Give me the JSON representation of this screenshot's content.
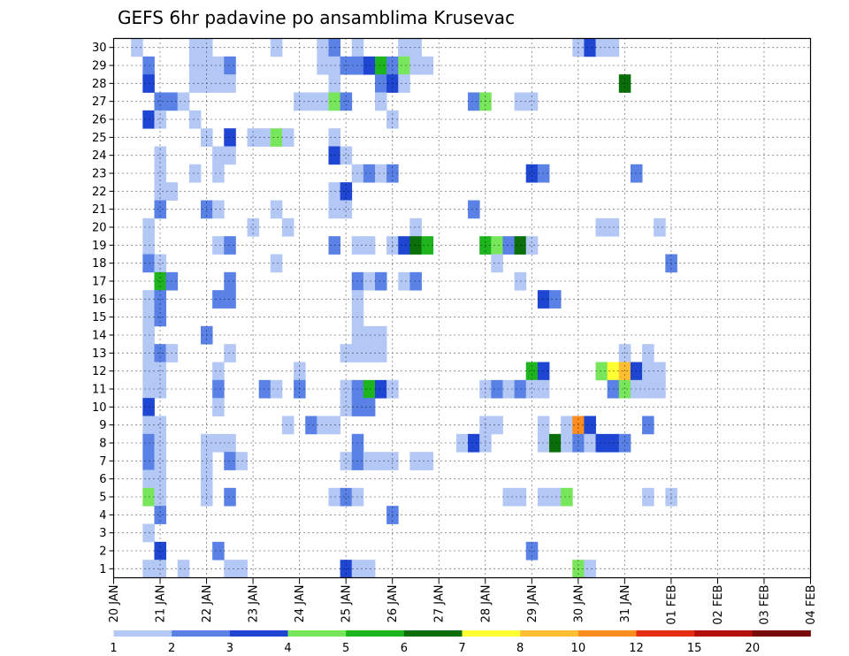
{
  "chart_data": {
    "type": "heatmap",
    "title": "GEFS 6hr padavine po ansamblima Krusevac",
    "xlabel": "",
    "ylabel": "",
    "x_tick_labels": [
      "20 JAN",
      "21 JAN",
      "22 JAN",
      "23 JAN",
      "24 JAN",
      "25 JAN",
      "26 JAN",
      "27 JAN",
      "28 JAN",
      "29 JAN",
      "30 JAN",
      "31 JAN",
      "01 FEB",
      "02 FEB",
      "03 FEB",
      "04 FEB"
    ],
    "y_tick_labels": [
      "1",
      "2",
      "3",
      "4",
      "5",
      "6",
      "7",
      "8",
      "9",
      "10",
      "11",
      "12",
      "13",
      "14",
      "15",
      "16",
      "17",
      "18",
      "19",
      "20",
      "21",
      "22",
      "23",
      "24",
      "25",
      "26",
      "27",
      "28",
      "29",
      "30"
    ],
    "xlim": [
      0,
      60
    ],
    "ylim": [
      0.5,
      30.5
    ],
    "time_step_hours": 6,
    "grid": "dotted",
    "legend": {
      "placement": "bottom",
      "levels": [
        "1",
        "2",
        "3",
        "4",
        "5",
        "6",
        "7",
        "8",
        "10",
        "12",
        "15",
        "20"
      ],
      "colors": [
        "#b4c8f5",
        "#5a82e6",
        "#1e46d2",
        "#78e65a",
        "#1eb41e",
        "#0a6e0a",
        "#ffff32",
        "#ffbe32",
        "#ff8c1e",
        "#e62d14",
        "#b40f0a",
        "#780a0a"
      ]
    },
    "cells": [
      [
        30,
        2,
        1
      ],
      [
        30,
        7,
        1
      ],
      [
        30,
        8,
        1
      ],
      [
        30,
        14,
        1
      ],
      [
        30,
        18,
        1
      ],
      [
        30,
        19,
        2
      ],
      [
        30,
        21,
        1
      ],
      [
        30,
        25,
        1
      ],
      [
        30,
        25,
        1
      ],
      [
        30,
        25,
        1
      ],
      [
        30,
        26,
        1
      ],
      [
        30,
        40,
        1
      ],
      [
        30,
        41,
        3
      ],
      [
        30,
        42,
        1
      ],
      [
        30,
        43,
        1
      ],
      [
        29,
        3,
        2
      ],
      [
        29,
        7,
        1
      ],
      [
        29,
        8,
        1
      ],
      [
        29,
        9,
        1
      ],
      [
        29,
        10,
        2
      ],
      [
        29,
        18,
        1
      ],
      [
        29,
        19,
        1
      ],
      [
        29,
        20,
        2
      ],
      [
        29,
        21,
        2
      ],
      [
        29,
        22,
        3
      ],
      [
        29,
        23,
        5
      ],
      [
        29,
        24,
        2
      ],
      [
        29,
        25,
        4
      ],
      [
        29,
        26,
        1
      ],
      [
        29,
        27,
        1
      ],
      [
        28,
        3,
        3
      ],
      [
        28,
        7,
        1
      ],
      [
        28,
        8,
        1
      ],
      [
        28,
        9,
        1
      ],
      [
        28,
        10,
        1
      ],
      [
        28,
        19,
        1
      ],
      [
        28,
        23,
        2
      ],
      [
        28,
        24,
        3
      ],
      [
        28,
        25,
        1
      ],
      [
        28,
        44,
        6
      ],
      [
        27,
        4,
        2
      ],
      [
        27,
        5,
        2
      ],
      [
        27,
        6,
        1
      ],
      [
        27,
        16,
        1
      ],
      [
        27,
        17,
        1
      ],
      [
        27,
        18,
        1
      ],
      [
        27,
        19,
        4
      ],
      [
        27,
        20,
        2
      ],
      [
        27,
        23,
        1
      ],
      [
        27,
        31,
        2
      ],
      [
        27,
        32,
        4
      ],
      [
        27,
        35,
        1
      ],
      [
        27,
        36,
        1
      ],
      [
        26,
        3,
        3
      ],
      [
        26,
        4,
        1
      ],
      [
        26,
        7,
        1
      ],
      [
        26,
        24,
        1
      ],
      [
        25,
        8,
        1
      ],
      [
        25,
        10,
        3
      ],
      [
        25,
        12,
        1
      ],
      [
        25,
        13,
        1
      ],
      [
        25,
        14,
        4
      ],
      [
        25,
        15,
        1
      ],
      [
        25,
        19,
        1
      ],
      [
        24,
        4,
        1
      ],
      [
        24,
        9,
        1
      ],
      [
        24,
        10,
        1
      ],
      [
        24,
        19,
        3
      ],
      [
        24,
        20,
        1
      ],
      [
        23,
        4,
        1
      ],
      [
        23,
        7,
        1
      ],
      [
        23,
        9,
        1
      ],
      [
        23,
        21,
        1
      ],
      [
        23,
        22,
        2
      ],
      [
        23,
        23,
        1
      ],
      [
        23,
        24,
        2
      ],
      [
        23,
        36,
        3
      ],
      [
        23,
        37,
        2
      ],
      [
        23,
        45,
        2
      ],
      [
        22,
        4,
        1
      ],
      [
        22,
        5,
        1
      ],
      [
        22,
        19,
        1
      ],
      [
        22,
        20,
        3
      ],
      [
        21,
        4,
        2
      ],
      [
        21,
        8,
        2
      ],
      [
        21,
        9,
        1
      ],
      [
        21,
        14,
        1
      ],
      [
        21,
        19,
        1
      ],
      [
        21,
        20,
        1
      ],
      [
        21,
        31,
        2
      ],
      [
        20,
        3,
        1
      ],
      [
        20,
        12,
        1
      ],
      [
        20,
        15,
        1
      ],
      [
        20,
        26,
        1
      ],
      [
        20,
        42,
        1
      ],
      [
        20,
        43,
        1
      ],
      [
        20,
        47,
        1
      ],
      [
        19,
        3,
        1
      ],
      [
        19,
        9,
        1
      ],
      [
        19,
        10,
        2
      ],
      [
        19,
        19,
        2
      ],
      [
        19,
        21,
        1
      ],
      [
        19,
        22,
        1
      ],
      [
        19,
        24,
        1
      ],
      [
        19,
        25,
        3
      ],
      [
        19,
        26,
        6
      ],
      [
        19,
        27,
        5
      ],
      [
        19,
        32,
        5
      ],
      [
        19,
        33,
        4
      ],
      [
        19,
        34,
        2
      ],
      [
        19,
        35,
        6
      ],
      [
        19,
        36,
        1
      ],
      [
        18,
        3,
        2
      ],
      [
        18,
        4,
        1
      ],
      [
        18,
        14,
        1
      ],
      [
        18,
        33,
        1
      ],
      [
        18,
        48,
        2
      ],
      [
        17,
        4,
        5
      ],
      [
        17,
        5,
        2
      ],
      [
        17,
        10,
        2
      ],
      [
        17,
        21,
        2
      ],
      [
        17,
        22,
        1
      ],
      [
        17,
        23,
        2
      ],
      [
        17,
        25,
        1
      ],
      [
        17,
        26,
        2
      ],
      [
        17,
        35,
        1
      ],
      [
        16,
        3,
        1
      ],
      [
        16,
        4,
        2
      ],
      [
        16,
        9,
        2
      ],
      [
        16,
        10,
        2
      ],
      [
        16,
        21,
        1
      ],
      [
        16,
        37,
        3
      ],
      [
        16,
        38,
        2
      ],
      [
        15,
        3,
        1
      ],
      [
        15,
        4,
        2
      ],
      [
        15,
        21,
        1
      ],
      [
        14,
        3,
        1
      ],
      [
        14,
        8,
        2
      ],
      [
        14,
        21,
        1
      ],
      [
        14,
        22,
        1
      ],
      [
        14,
        23,
        1
      ],
      [
        13,
        3,
        1
      ],
      [
        13,
        4,
        2
      ],
      [
        13,
        5,
        1
      ],
      [
        13,
        10,
        1
      ],
      [
        13,
        20,
        1
      ],
      [
        13,
        21,
        1
      ],
      [
        13,
        22,
        1
      ],
      [
        13,
        23,
        1
      ],
      [
        13,
        44,
        1
      ],
      [
        13,
        46,
        1
      ],
      [
        12,
        3,
        1
      ],
      [
        12,
        4,
        1
      ],
      [
        12,
        9,
        1
      ],
      [
        12,
        16,
        1
      ],
      [
        12,
        36,
        5
      ],
      [
        12,
        37,
        3
      ],
      [
        12,
        42,
        4
      ],
      [
        12,
        43,
        7
      ],
      [
        12,
        44,
        8
      ],
      [
        12,
        45,
        3
      ],
      [
        12,
        46,
        1
      ],
      [
        12,
        47,
        1
      ],
      [
        11,
        3,
        1
      ],
      [
        11,
        4,
        1
      ],
      [
        11,
        9,
        2
      ],
      [
        11,
        13,
        2
      ],
      [
        11,
        14,
        1
      ],
      [
        11,
        16,
        2
      ],
      [
        11,
        20,
        1
      ],
      [
        11,
        21,
        2
      ],
      [
        11,
        22,
        5
      ],
      [
        11,
        23,
        3
      ],
      [
        11,
        24,
        1
      ],
      [
        11,
        32,
        1
      ],
      [
        11,
        33,
        2
      ],
      [
        11,
        34,
        1
      ],
      [
        11,
        35,
        2
      ],
      [
        11,
        36,
        1
      ],
      [
        11,
        37,
        1
      ],
      [
        11,
        43,
        2
      ],
      [
        11,
        44,
        4
      ],
      [
        11,
        45,
        1
      ],
      [
        11,
        46,
        1
      ],
      [
        11,
        47,
        1
      ],
      [
        10,
        3,
        3
      ],
      [
        10,
        9,
        1
      ],
      [
        10,
        20,
        1
      ],
      [
        10,
        21,
        2
      ],
      [
        10,
        22,
        2
      ],
      [
        9,
        3,
        1
      ],
      [
        9,
        4,
        1
      ],
      [
        9,
        15,
        1
      ],
      [
        9,
        17,
        2
      ],
      [
        9,
        18,
        1
      ],
      [
        9,
        19,
        1
      ],
      [
        9,
        32,
        1
      ],
      [
        9,
        33,
        1
      ],
      [
        9,
        37,
        1
      ],
      [
        9,
        39,
        1
      ],
      [
        9,
        40,
        9
      ],
      [
        9,
        41,
        3
      ],
      [
        9,
        46,
        2
      ],
      [
        8,
        3,
        2
      ],
      [
        8,
        4,
        1
      ],
      [
        8,
        8,
        1
      ],
      [
        8,
        9,
        1
      ],
      [
        8,
        10,
        1
      ],
      [
        8,
        21,
        2
      ],
      [
        8,
        30,
        1
      ],
      [
        8,
        31,
        3
      ],
      [
        8,
        32,
        1
      ],
      [
        8,
        37,
        1
      ],
      [
        8,
        38,
        6
      ],
      [
        8,
        39,
        1
      ],
      [
        8,
        40,
        2
      ],
      [
        8,
        41,
        1
      ],
      [
        8,
        42,
        3
      ],
      [
        8,
        43,
        3
      ],
      [
        8,
        44,
        2
      ],
      [
        7,
        3,
        2
      ],
      [
        7,
        4,
        1
      ],
      [
        7,
        8,
        1
      ],
      [
        7,
        10,
        2
      ],
      [
        7,
        11,
        1
      ],
      [
        7,
        20,
        1
      ],
      [
        7,
        21,
        2
      ],
      [
        7,
        22,
        1
      ],
      [
        7,
        23,
        1
      ],
      [
        7,
        24,
        1
      ],
      [
        7,
        26,
        1
      ],
      [
        7,
        27,
        1
      ],
      [
        6,
        3,
        1
      ],
      [
        6,
        4,
        1
      ],
      [
        6,
        8,
        1
      ],
      [
        5,
        3,
        4
      ],
      [
        5,
        4,
        1
      ],
      [
        5,
        8,
        1
      ],
      [
        5,
        10,
        2
      ],
      [
        5,
        19,
        1
      ],
      [
        5,
        20,
        2
      ],
      [
        5,
        21,
        1
      ],
      [
        5,
        34,
        1
      ],
      [
        5,
        35,
        1
      ],
      [
        5,
        37,
        1
      ],
      [
        5,
        38,
        1
      ],
      [
        5,
        39,
        4
      ],
      [
        5,
        46,
        1
      ],
      [
        5,
        48,
        1
      ],
      [
        4,
        4,
        2
      ],
      [
        4,
        24,
        2
      ],
      [
        3,
        3,
        1
      ],
      [
        2,
        4,
        3
      ],
      [
        2,
        9,
        2
      ],
      [
        2,
        36,
        2
      ],
      [
        1,
        3,
        1
      ],
      [
        1,
        4,
        1
      ],
      [
        1,
        6,
        1
      ],
      [
        1,
        10,
        1
      ],
      [
        1,
        11,
        1
      ],
      [
        1,
        20,
        3
      ],
      [
        1,
        21,
        1
      ],
      [
        1,
        22,
        1
      ],
      [
        1,
        40,
        4
      ],
      [
        1,
        41,
        1
      ]
    ]
  }
}
